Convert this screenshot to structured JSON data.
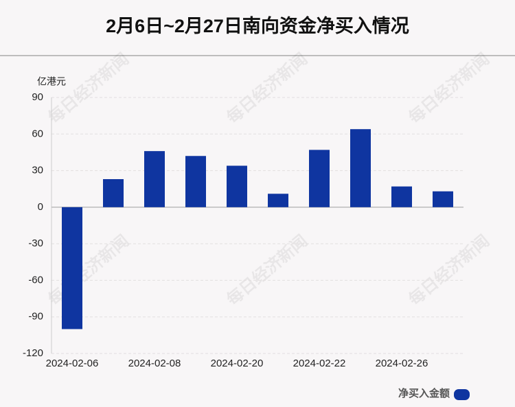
{
  "chart_data": {
    "type": "bar",
    "title": "2月6日~2月27日南向资金净买入情况",
    "y_unit": "亿港元",
    "watermark": "每日经济新闻",
    "categories": [
      "2024-02-06",
      null,
      "2024-02-08",
      null,
      "2024-02-20",
      null,
      "2024-02-22",
      null,
      "2024-02-26",
      null
    ],
    "series": [
      {
        "name": "净买入金额",
        "color": "#0f35a0",
        "values": [
          -100,
          23,
          46,
          42,
          34,
          11,
          47,
          64,
          17,
          13
        ]
      }
    ],
    "ylim": [
      -120,
      90
    ],
    "yticks": [
      -120,
      -90,
      -60,
      -30,
      0,
      30,
      60,
      90
    ],
    "grid": true,
    "legend": "bottom-right"
  }
}
